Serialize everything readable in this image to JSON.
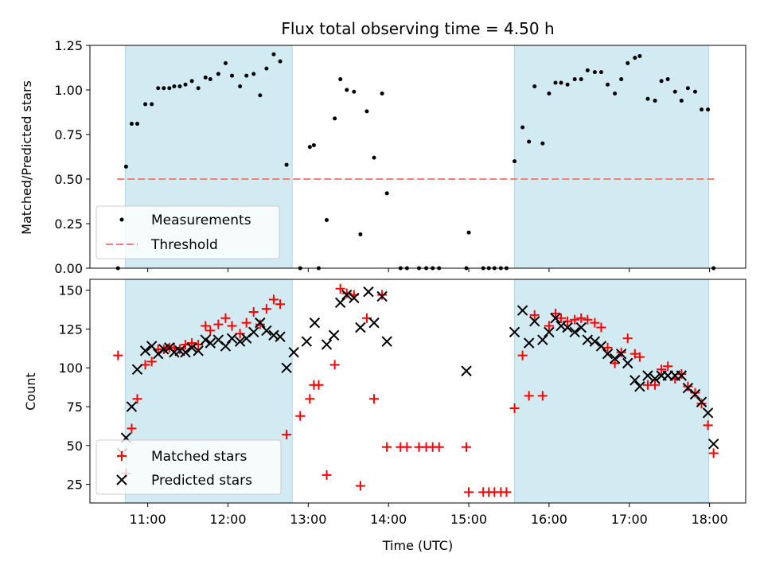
{
  "figure": {
    "title": "Flux total observing time = 4.50 h"
  },
  "colors": {
    "shade": "#add8e6",
    "threshold": "#f08080",
    "measurement": "#000000",
    "matched": "#ff0000",
    "predicted": "#000000"
  },
  "chart_data": [
    {
      "type": "scatter",
      "ylabel": "Matched/Predicted stars",
      "xlim": [
        10.28,
        18.45
      ],
      "ylim": [
        0,
        1.25
      ],
      "yticks": [
        0,
        0.25,
        0.5,
        0.75,
        1.0,
        1.25
      ],
      "ytick_labels": [
        "0.00",
        "0.25",
        "0.50",
        "0.75",
        "1.00",
        "1.25"
      ],
      "shaded_spans": [
        [
          10.72,
          12.8
        ],
        [
          15.57,
          17.99
        ]
      ],
      "threshold": {
        "name": "Threshold",
        "value": 0.5,
        "x_range": [
          10.62,
          18.08
        ]
      },
      "legend": {
        "position": "lower-left",
        "entries": [
          "Measurements",
          "Threshold"
        ]
      },
      "series": [
        {
          "name": "Measurements",
          "x": [
            10.63,
            10.73,
            10.8,
            10.87,
            10.97,
            11.05,
            11.13,
            11.2,
            11.27,
            11.33,
            11.4,
            11.47,
            11.55,
            11.63,
            11.72,
            11.78,
            11.88,
            11.97,
            12.05,
            12.15,
            12.23,
            12.32,
            12.4,
            12.48,
            12.57,
            12.65,
            12.73,
            12.9,
            13.02,
            13.07,
            13.13,
            13.23,
            13.33,
            13.4,
            13.48,
            13.57,
            13.65,
            13.73,
            13.82,
            13.92,
            13.98,
            14.15,
            14.23,
            14.38,
            14.47,
            14.55,
            14.63,
            14.97,
            15.0,
            15.18,
            15.25,
            15.32,
            15.4,
            15.47,
            15.57,
            15.67,
            15.75,
            15.82,
            15.92,
            16.0,
            16.08,
            16.15,
            16.23,
            16.32,
            16.4,
            16.48,
            16.57,
            16.65,
            16.73,
            16.82,
            16.9,
            16.98,
            17.07,
            17.13,
            17.23,
            17.32,
            17.4,
            17.48,
            17.57,
            17.65,
            17.73,
            17.82,
            17.9,
            17.98,
            18.05
          ],
          "y": [
            0.0,
            0.57,
            0.81,
            0.81,
            0.92,
            0.92,
            1.01,
            1.01,
            1.01,
            1.02,
            1.02,
            1.03,
            1.05,
            1.01,
            1.07,
            1.06,
            1.09,
            1.15,
            1.08,
            1.02,
            1.08,
            1.09,
            0.97,
            1.12,
            1.2,
            1.16,
            0.58,
            0.0,
            0.68,
            0.69,
            0.0,
            0.27,
            0.84,
            1.06,
            1.0,
            0.99,
            0.19,
            0.88,
            0.62,
            0.98,
            0.42,
            0.0,
            0.0,
            0.0,
            0.0,
            0.0,
            0.0,
            0.0,
            0.2,
            0.0,
            0.0,
            0.0,
            0.0,
            0.0,
            0.6,
            0.79,
            0.71,
            1.02,
            0.7,
            0.98,
            1.04,
            1.04,
            1.03,
            1.06,
            1.06,
            1.11,
            1.1,
            1.1,
            1.03,
            0.98,
            1.06,
            1.15,
            1.18,
            1.19,
            0.95,
            0.94,
            1.05,
            1.06,
            0.99,
            0.94,
            1.01,
            0.99,
            0.89,
            0.89,
            0.0
          ]
        }
      ]
    },
    {
      "type": "scatter",
      "xlabel": "Time (UTC)",
      "ylabel": "Count",
      "xlim": [
        10.28,
        18.45
      ],
      "ylim": [
        13,
        157
      ],
      "yticks": [
        25,
        50,
        75,
        100,
        125,
        150
      ],
      "ytick_labels": [
        "25",
        "50",
        "75",
        "100",
        "125",
        "150"
      ],
      "xticks": [
        11,
        12,
        13,
        14,
        15,
        16,
        17,
        18
      ],
      "xtick_labels": [
        "11:00",
        "12:00",
        "13:00",
        "14:00",
        "15:00",
        "16:00",
        "17:00",
        "18:00"
      ],
      "shaded_spans": [
        [
          10.72,
          12.8
        ],
        [
          15.57,
          17.99
        ]
      ],
      "legend": {
        "position": "lower-left",
        "entries": [
          "Matched stars",
          "Predicted stars"
        ]
      },
      "series": [
        {
          "name": "Matched stars",
          "marker": "plus",
          "x": [
            10.63,
            10.73,
            10.8,
            10.87,
            10.97,
            11.05,
            11.13,
            11.2,
            11.27,
            11.33,
            11.4,
            11.47,
            11.55,
            11.63,
            11.72,
            11.78,
            11.88,
            11.97,
            12.05,
            12.15,
            12.23,
            12.32,
            12.4,
            12.48,
            12.57,
            12.65,
            12.73,
            12.9,
            13.02,
            13.07,
            13.13,
            13.23,
            13.33,
            13.4,
            13.48,
            13.57,
            13.65,
            13.73,
            13.82,
            13.92,
            13.98,
            14.15,
            14.23,
            14.38,
            14.47,
            14.55,
            14.63,
            14.97,
            15.0,
            15.18,
            15.25,
            15.32,
            15.4,
            15.47,
            15.57,
            15.67,
            15.75,
            15.82,
            15.92,
            16.0,
            16.08,
            16.15,
            16.23,
            16.32,
            16.4,
            16.48,
            16.57,
            16.65,
            16.73,
            16.82,
            16.9,
            16.98,
            17.07,
            17.13,
            17.23,
            17.32,
            17.4,
            17.48,
            17.57,
            17.65,
            17.73,
            17.82,
            17.9,
            17.98,
            18.05
          ],
          "y": [
            108,
            32,
            61,
            80,
            102,
            104,
            112,
            112,
            113,
            113,
            112,
            115,
            116,
            115,
            127,
            124,
            128,
            132,
            127,
            122,
            129,
            136,
            128,
            138,
            144,
            141,
            57,
            69,
            80,
            89,
            89,
            31,
            102,
            151,
            148,
            147,
            24,
            132,
            80,
            147,
            49,
            49,
            49,
            49,
            49,
            49,
            49,
            49,
            20,
            20,
            20,
            20,
            20,
            20,
            74,
            108,
            82,
            134,
            82,
            127,
            135,
            132,
            130,
            131,
            132,
            131,
            129,
            126,
            113,
            103,
            110,
            119,
            109,
            107,
            89,
            89,
            99,
            101,
            93,
            96,
            88,
            84,
            77,
            63,
            45
          ]
        },
        {
          "name": "Predicted stars",
          "marker": "x",
          "x": [
            10.68,
            10.73,
            10.8,
            10.87,
            10.97,
            11.05,
            11.13,
            11.2,
            11.27,
            11.33,
            11.4,
            11.47,
            11.55,
            11.63,
            11.72,
            11.78,
            11.88,
            11.97,
            12.05,
            12.15,
            12.23,
            12.32,
            12.4,
            12.48,
            12.57,
            12.65,
            12.73,
            12.82,
            12.98,
            13.08,
            13.23,
            13.32,
            13.4,
            13.48,
            13.57,
            13.65,
            13.75,
            13.82,
            13.92,
            13.98,
            14.97,
            15.57,
            15.67,
            15.75,
            15.82,
            15.92,
            16.0,
            16.08,
            16.15,
            16.23,
            16.32,
            16.4,
            16.48,
            16.57,
            16.65,
            16.73,
            16.82,
            16.9,
            16.98,
            17.07,
            17.13,
            17.23,
            17.32,
            17.4,
            17.48,
            17.57,
            17.65,
            17.73,
            17.82,
            17.9,
            17.98,
            18.05
          ],
          "y": [
            45,
            55,
            75,
            99,
            111,
            114,
            109,
            112,
            113,
            110,
            111,
            110,
            113,
            111,
            118,
            116,
            118,
            114,
            119,
            117,
            119,
            123,
            129,
            124,
            121,
            120,
            100,
            110,
            117,
            129,
            115,
            121,
            142,
            147,
            145,
            126,
            149,
            129,
            146,
            117,
            98,
            123,
            137,
            116,
            130,
            118,
            123,
            132,
            127,
            126,
            123,
            126,
            118,
            117,
            114,
            109,
            106,
            109,
            103,
            92,
            88,
            95,
            93,
            95,
            95,
            95,
            95,
            87,
            83,
            78,
            71,
            51
          ]
        }
      ]
    }
  ]
}
